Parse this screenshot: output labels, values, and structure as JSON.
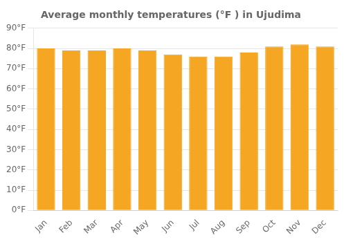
{
  "chart_data": {
    "type": "bar",
    "title": "Average monthly temperatures (°F ) in Ujudima",
    "categories": [
      "Jan",
      "Feb",
      "Mar",
      "Apr",
      "May",
      "Jun",
      "Jul",
      "Aug",
      "Sep",
      "Oct",
      "Nov",
      "Dec"
    ],
    "values": [
      80,
      79,
      79,
      80,
      79,
      77,
      76,
      76,
      78,
      81,
      82,
      81
    ],
    "color": "#F5A623",
    "ylim": [
      0,
      90
    ],
    "yticks": [
      {
        "value": 0,
        "label": "0°F"
      },
      {
        "value": 10,
        "label": "10°F"
      },
      {
        "value": 20,
        "label": "20°F"
      },
      {
        "value": 30,
        "label": "30°F"
      },
      {
        "value": 40,
        "label": "40°F"
      },
      {
        "value": 50,
        "label": "50°F"
      },
      {
        "value": 60,
        "label": "60°F"
      },
      {
        "value": 70,
        "label": "70°F"
      },
      {
        "value": 80,
        "label": "80°F"
      },
      {
        "value": 90,
        "label": "90°F"
      }
    ],
    "grid": true
  }
}
